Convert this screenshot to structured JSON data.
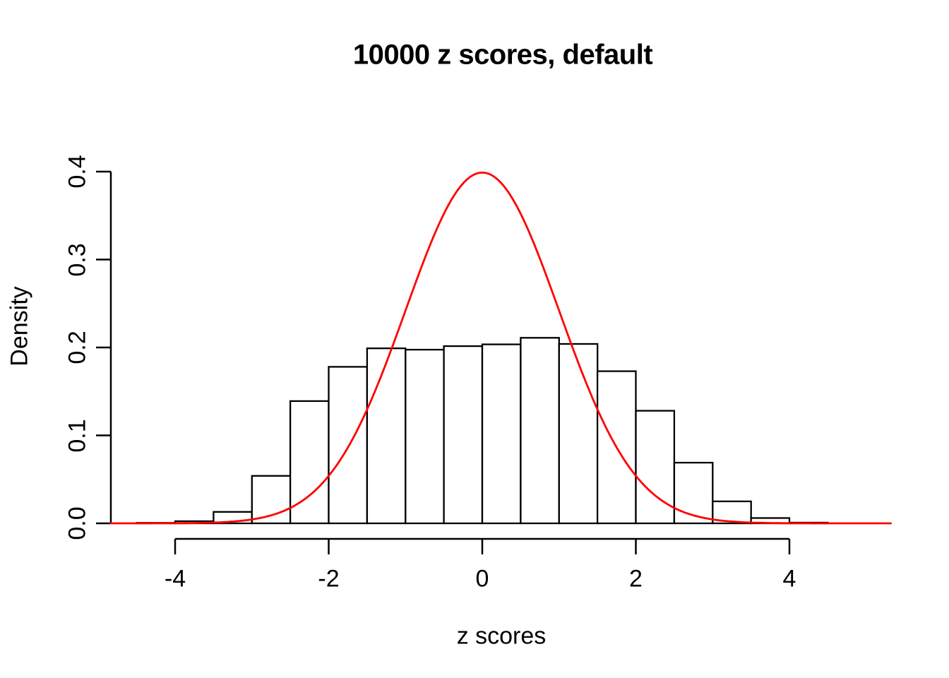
{
  "title": "10000 z scores, default",
  "x_axis": {
    "label": "z scores",
    "tick_labels": [
      "-4",
      "-2",
      "0",
      "2",
      "4"
    ],
    "tick_values": [
      -4,
      -2,
      0,
      2,
      4
    ]
  },
  "y_axis": {
    "label": "Density",
    "tick_labels": [
      "0.0",
      "0.1",
      "0.2",
      "0.3",
      "0.4"
    ],
    "tick_values": [
      0,
      0.1,
      0.2,
      0.3,
      0.4
    ]
  },
  "colors": {
    "background": "#ffffff",
    "bar_fill": "#ffffff",
    "bar_stroke": "#000000",
    "axis": "#000000",
    "text": "#000000",
    "curve": "#ff0000"
  },
  "chart_data": {
    "type": "histogram",
    "title": "10000 z scores, default",
    "xlabel": "z scores",
    "ylabel": "Density",
    "xticks": [
      -4,
      -2,
      0,
      2,
      4
    ],
    "yticks": [
      0.0,
      0.1,
      0.2,
      0.3,
      0.4
    ],
    "xlim": [
      -4.84,
      5.33
    ],
    "ylim": [
      0,
      0.4
    ],
    "grid": false,
    "legend": "none",
    "bin_width": 0.5,
    "bin_edges": [
      -4.5,
      -4,
      -3.5,
      -3,
      -2.5,
      -2,
      -1.5,
      -1,
      -0.5,
      0,
      0.5,
      1,
      1.5,
      2,
      2.5,
      3,
      3.5,
      4,
      4.5
    ],
    "densities": [
      0.0006,
      0.0024,
      0.013,
      0.054,
      0.139,
      0.178,
      0.199,
      0.1975,
      0.2015,
      0.2035,
      0.211,
      0.204,
      0.173,
      0.128,
      0.069,
      0.025,
      0.006,
      0.0008
    ],
    "overlay_curve": {
      "type": "line",
      "distribution": "standard_normal_density",
      "mean": 0,
      "sd": 1,
      "peak_density": 0.3989,
      "color": "#ff0000"
    }
  }
}
